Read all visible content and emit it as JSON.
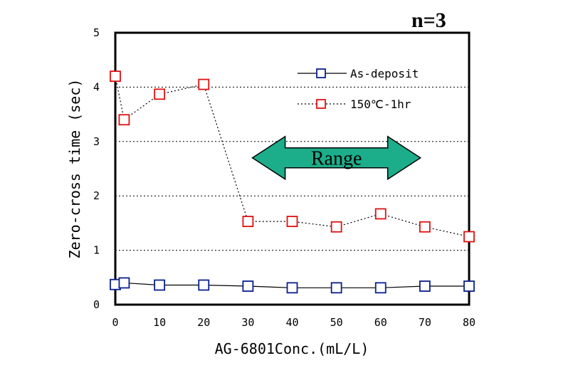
{
  "chart_data": {
    "type": "line",
    "title": "",
    "annotation": "n=3",
    "xlabel": "AG-6801Conc.(mL/L)",
    "ylabel": "Zero-cross time (sec)",
    "xlim": [
      0,
      80
    ],
    "ylim": [
      0,
      5
    ],
    "x_ticks": [
      0,
      10,
      20,
      30,
      40,
      50,
      60,
      70,
      80
    ],
    "y_ticks": [
      0,
      1,
      2,
      3,
      4,
      5
    ],
    "grid": "horizontal dotted",
    "legend_position": "top-right",
    "series": [
      {
        "name": "As-deposit",
        "color": "#0a1f8f",
        "line_style": "solid",
        "marker": "square",
        "x": [
          0,
          2,
          10,
          20,
          30,
          40,
          50,
          60,
          70,
          80
        ],
        "y": [
          0.37,
          0.4,
          0.36,
          0.36,
          0.34,
          0.31,
          0.31,
          0.31,
          0.34,
          0.34
        ]
      },
      {
        "name": "150℃-1hr",
        "color": "#e01010",
        "line_style": "dotted",
        "marker": "square",
        "x": [
          0,
          2,
          10,
          20,
          30,
          40,
          50,
          60,
          70,
          80
        ],
        "y": [
          4.2,
          3.4,
          3.87,
          4.05,
          1.53,
          1.53,
          1.43,
          1.67,
          1.43,
          1.25
        ]
      }
    ],
    "range_arrow": {
      "label": "Range",
      "x_from": 31,
      "x_to": 69,
      "y": 2.7,
      "color": "#1cae8a"
    }
  }
}
